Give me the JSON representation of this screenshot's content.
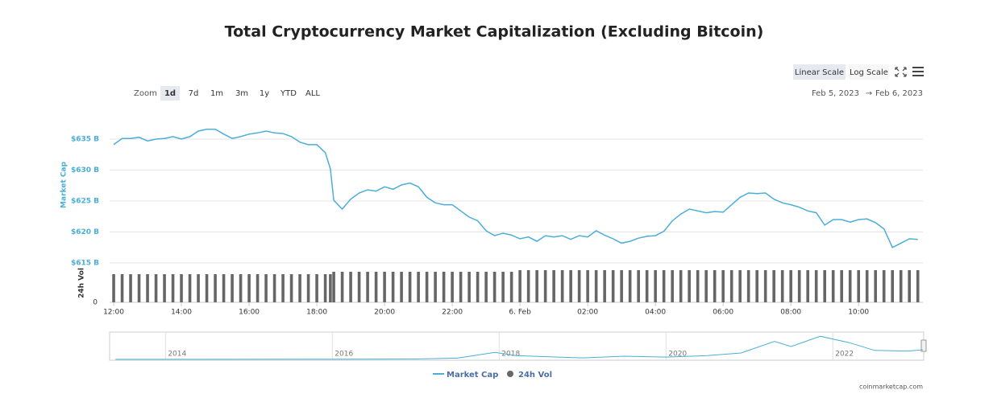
{
  "chart_data": {
    "type": "line",
    "title": "Total Cryptocurrency Market Capitalization (Excluding Bitcoin)",
    "y_label": "Market Cap",
    "y2_label": "24h Vol",
    "xlim": [
      11.88,
      35.9
    ],
    "xticks": [
      {
        "value": 12,
        "label": "12:00"
      },
      {
        "value": 14,
        "label": "14:00"
      },
      {
        "value": 16,
        "label": "16:00"
      },
      {
        "value": 18,
        "label": "18:00"
      },
      {
        "value": 20,
        "label": "20:00"
      },
      {
        "value": 22,
        "label": "22:00"
      },
      {
        "value": 24,
        "label": "6. Feb"
      },
      {
        "value": 26,
        "label": "02:00"
      },
      {
        "value": 28,
        "label": "04:00"
      },
      {
        "value": 30,
        "label": "06:00"
      },
      {
        "value": 32,
        "label": "08:00"
      },
      {
        "value": 34,
        "label": "10:00"
      }
    ],
    "ylim": [
      615,
      640
    ],
    "yticks": [
      {
        "value": 615,
        "label": "$615 B"
      },
      {
        "value": 620,
        "label": "$620 B"
      },
      {
        "value": 625,
        "label": "$625 B"
      },
      {
        "value": 630,
        "label": "$630 B"
      },
      {
        "value": 635,
        "label": "$635 B"
      }
    ],
    "y2lim": [
      0,
      45
    ],
    "y2ticks": [
      0
    ],
    "grid": true,
    "x": [
      12.0,
      12.25,
      12.5,
      12.75,
      13.0,
      13.25,
      13.5,
      13.75,
      14.0,
      14.25,
      14.5,
      14.75,
      15.0,
      15.25,
      15.5,
      15.75,
      16.0,
      16.25,
      16.5,
      16.75,
      17.0,
      17.25,
      17.5,
      17.75,
      18.0,
      18.25,
      18.4,
      18.5,
      18.75,
      19.0,
      19.25,
      19.5,
      19.75,
      20.0,
      20.25,
      20.5,
      20.75,
      21.0,
      21.25,
      21.5,
      21.75,
      22.0,
      22.25,
      22.5,
      22.75,
      23.0,
      23.25,
      23.5,
      23.75,
      24.0,
      24.25,
      24.5,
      24.75,
      25.0,
      25.25,
      25.5,
      25.75,
      26.0,
      26.25,
      26.5,
      26.75,
      27.0,
      27.25,
      27.5,
      27.75,
      28.0,
      28.25,
      28.5,
      28.75,
      29.0,
      29.25,
      29.5,
      29.75,
      30.0,
      30.25,
      30.5,
      30.75,
      31.0,
      31.25,
      31.5,
      31.75,
      32.0,
      32.25,
      32.5,
      32.75,
      33.0,
      33.25,
      33.5,
      33.75,
      34.0,
      34.25,
      34.5,
      34.75,
      35.0,
      35.25,
      35.5,
      35.75
    ],
    "series": [
      {
        "name": "Market Cap",
        "color": "#4aaed9",
        "values": [
          634.1,
          635.1,
          635.1,
          635.3,
          634.7,
          635.0,
          635.1,
          635.4,
          635.0,
          635.4,
          636.3,
          636.6,
          636.6,
          635.8,
          635.1,
          635.4,
          635.8,
          636.0,
          636.3,
          636.0,
          635.9,
          635.4,
          634.5,
          634.1,
          634.1,
          632.8,
          630.2,
          625.1,
          623.7,
          625.3,
          626.3,
          626.8,
          626.6,
          627.3,
          626.9,
          627.6,
          627.9,
          627.3,
          625.6,
          624.7,
          624.4,
          624.4,
          623.4,
          622.4,
          621.8,
          620.2,
          619.4,
          619.8,
          619.5,
          618.9,
          619.2,
          618.5,
          619.4,
          619.2,
          619.4,
          618.8,
          619.4,
          619.2,
          620.2,
          619.5,
          618.9,
          618.2,
          618.5,
          619.0,
          619.3,
          619.4,
          620.1,
          621.8,
          622.9,
          623.7,
          623.4,
          623.1,
          623.3,
          623.2,
          624.4,
          625.6,
          626.3,
          626.2,
          626.3,
          625.3,
          624.7,
          624.4,
          624.0,
          623.4,
          623.1,
          621.1,
          622.0,
          622.0,
          621.6,
          622.0,
          622.1,
          621.5,
          620.5,
          617.5,
          618.2,
          618.9,
          618.8
        ]
      },
      {
        "name": "24h Vol",
        "color": "#666666",
        "axis": "y2",
        "values": [
          35,
          35,
          35,
          35,
          35,
          35,
          35,
          35,
          35,
          35,
          35,
          35,
          35,
          35,
          35,
          35,
          35,
          35,
          35,
          35,
          35,
          35,
          35,
          35,
          35,
          35,
          35,
          38,
          38,
          38,
          38,
          38,
          38,
          38,
          38,
          38,
          38,
          38,
          38,
          38,
          38,
          38,
          38,
          38,
          38,
          38,
          38,
          38,
          38,
          40,
          40,
          40,
          40,
          40,
          40,
          40,
          40,
          40,
          40,
          40,
          40,
          40,
          40,
          40,
          40,
          40,
          40,
          40,
          40,
          40,
          40,
          40,
          40,
          40,
          40,
          40,
          40,
          40,
          40,
          40,
          40,
          40,
          40,
          40,
          40,
          40,
          40,
          40,
          40,
          40,
          40,
          40,
          40,
          40,
          40,
          40,
          40
        ]
      }
    ],
    "navigator": {
      "xlim": [
        2013.33,
        2023.08
      ],
      "ylim": [
        0,
        2000
      ],
      "xticks": [
        2014,
        2016,
        2018,
        2020,
        2022
      ],
      "x": [
        2013.4,
        2016,
        2017,
        2017.5,
        2017.95,
        2018.2,
        2018.6,
        2019,
        2019.5,
        2020,
        2020.5,
        2020.9,
        2021.3,
        2021.5,
        2021.85,
        2022.2,
        2022.5,
        2022.9,
        2023.08
      ],
      "values": [
        5,
        10,
        30,
        100,
        550,
        300,
        200,
        120,
        250,
        180,
        300,
        500,
        1400,
        1000,
        1800,
        1300,
        700,
        650,
        750
      ]
    }
  },
  "controls": {
    "scale_buttons": [
      "Linear Scale",
      "Log Scale"
    ],
    "zoom_label": "Zoom",
    "zoom_buttons": [
      "1d",
      "7d",
      "1m",
      "3m",
      "1y",
      "YTD",
      "ALL"
    ],
    "date_from": "Feb 5, 2023",
    "date_separator": "→",
    "date_to": "Feb 6, 2023"
  },
  "source": "coinmarketcap.com"
}
